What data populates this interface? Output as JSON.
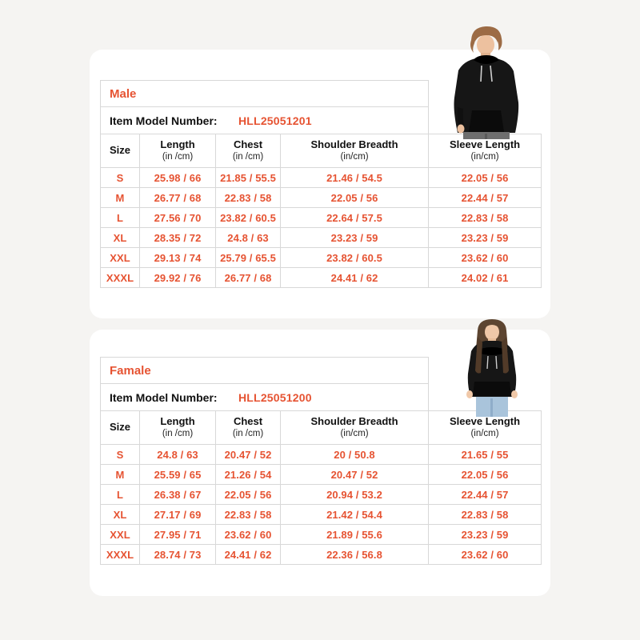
{
  "page": {
    "background_color": "#f5f4f2",
    "card_color": "#ffffff",
    "accent_color": "#e65332",
    "border_color": "#d8d8d8"
  },
  "figures": {
    "male": "man-wearing-black-hoodie-photo",
    "female": "woman-wearing-black-hoodie-photo"
  },
  "tables": {
    "male": {
      "gender": "Male",
      "model_label": "Item Model Number:",
      "model_value": "HLL25051201",
      "columns": [
        {
          "label": "Size",
          "unit": ""
        },
        {
          "label": "Length",
          "unit": "(in /cm)"
        },
        {
          "label": "Chest",
          "unit": "(in /cm)"
        },
        {
          "label": "Shoulder Breadth",
          "unit": "(in/cm)"
        },
        {
          "label": "Sleeve Length",
          "unit": "(in/cm)"
        }
      ],
      "rows": [
        [
          "S",
          "25.98 / 66",
          "21.85 / 55.5",
          "21.46 / 54.5",
          "22.05 / 56"
        ],
        [
          "M",
          "26.77 / 68",
          "22.83 / 58",
          "22.05 / 56",
          "22.44 / 57"
        ],
        [
          "L",
          "27.56 / 70",
          "23.82 / 60.5",
          "22.64 / 57.5",
          "22.83 / 58"
        ],
        [
          "XL",
          "28.35 / 72",
          "24.8 / 63",
          "23.23 / 59",
          "23.23 / 59"
        ],
        [
          "XXL",
          "29.13 / 74",
          "25.79 / 65.5",
          "23.82 / 60.5",
          "23.62 / 60"
        ],
        [
          "XXXL",
          "29.92 / 76",
          "26.77 / 68",
          "24.41 / 62",
          "24.02 / 61"
        ]
      ]
    },
    "female": {
      "gender": "Famale",
      "model_label": "Item Model Number:",
      "model_value": "HLL25051200",
      "columns": [
        {
          "label": "Size",
          "unit": ""
        },
        {
          "label": "Length",
          "unit": "(in /cm)"
        },
        {
          "label": "Chest",
          "unit": "(in /cm)"
        },
        {
          "label": "Shoulder Breadth",
          "unit": "(in/cm)"
        },
        {
          "label": "Sleeve Length",
          "unit": "(in/cm)"
        }
      ],
      "rows": [
        [
          "S",
          "24.8 / 63",
          "20.47 / 52",
          "20 / 50.8",
          "21.65 / 55"
        ],
        [
          "M",
          "25.59 / 65",
          "21.26 / 54",
          "20.47 / 52",
          "22.05 / 56"
        ],
        [
          "L",
          "26.38 / 67",
          "22.05 / 56",
          "20.94 / 53.2",
          "22.44 / 57"
        ],
        [
          "XL",
          "27.17 / 69",
          "22.83 / 58",
          "21.42 / 54.4",
          "22.83 / 58"
        ],
        [
          "XXL",
          "27.95 / 71",
          "23.62 / 60",
          "21.89 / 55.6",
          "23.23 / 59"
        ],
        [
          "XXXL",
          "28.74 / 73",
          "24.41 / 62",
          "22.36 / 56.8",
          "23.62 / 60"
        ]
      ]
    }
  }
}
